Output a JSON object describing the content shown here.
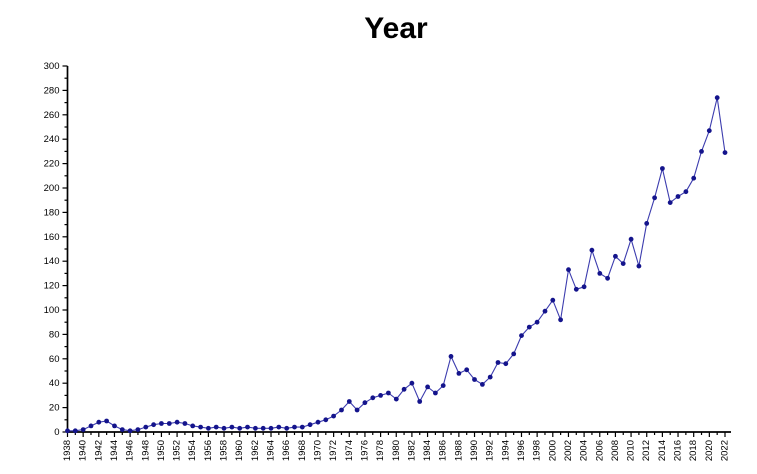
{
  "title": "Year",
  "colors": {
    "background": "#ffffff",
    "axis": "#000000",
    "text": "#000000",
    "line": "#3c3cae",
    "marker": "#14148c"
  },
  "chart_data": {
    "type": "line",
    "title": "Year",
    "xlabel": "",
    "ylabel": "",
    "ylim": [
      0,
      300
    ],
    "y_tick_step": 20,
    "y_minor_step": 10,
    "x_label_step": 2,
    "x_minor_step": 1,
    "grid": false,
    "legend": null,
    "marker": "circle",
    "x": [
      1938,
      1939,
      1940,
      1941,
      1942,
      1943,
      1944,
      1945,
      1946,
      1947,
      1948,
      1949,
      1950,
      1951,
      1952,
      1953,
      1954,
      1955,
      1956,
      1957,
      1958,
      1959,
      1960,
      1961,
      1962,
      1963,
      1964,
      1965,
      1966,
      1967,
      1968,
      1969,
      1970,
      1971,
      1972,
      1973,
      1974,
      1975,
      1976,
      1977,
      1978,
      1979,
      1980,
      1981,
      1982,
      1983,
      1984,
      1985,
      1986,
      1987,
      1988,
      1989,
      1990,
      1991,
      1992,
      1993,
      1994,
      1995,
      1996,
      1997,
      1998,
      1999,
      2000,
      2001,
      2002,
      2003,
      2004,
      2005,
      2006,
      2007,
      2008,
      2009,
      2010,
      2011,
      2012,
      2013,
      2014,
      2015,
      2016,
      2017,
      2018,
      2019,
      2020,
      2021,
      2022
    ],
    "values": [
      1,
      1,
      2,
      5,
      8,
      9,
      5,
      2,
      1,
      2,
      4,
      6,
      7,
      7,
      8,
      7,
      5,
      4,
      3,
      4,
      3,
      4,
      3,
      4,
      3,
      3,
      3,
      4,
      3,
      4,
      4,
      6,
      8,
      10,
      13,
      18,
      25,
      18,
      24,
      28,
      30,
      32,
      27,
      35,
      40,
      25,
      37,
      32,
      38,
      62,
      48,
      51,
      43,
      39,
      45,
      57,
      56,
      64,
      79,
      86,
      90,
      99,
      108,
      92,
      133,
      117,
      119,
      149,
      130,
      126,
      144,
      138,
      158,
      136,
      171,
      192,
      216,
      188,
      193,
      197,
      208,
      230,
      247,
      274,
      229
    ]
  }
}
